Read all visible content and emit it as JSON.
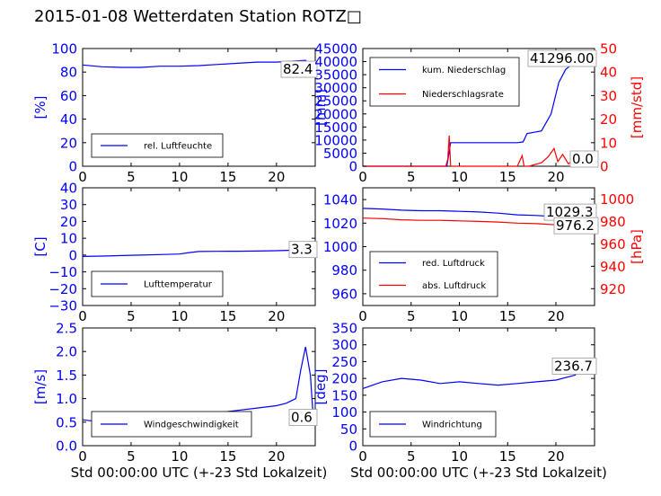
{
  "title": "2015-01-08 Wetterdaten Station ROTZ□",
  "colors": {
    "blue": "#0000ff",
    "red": "#ff0000",
    "axis": "#000000"
  },
  "xlabel": "Std 00:00:00 UTC (+-23 Std Lokalzeit)",
  "chart_data": [
    {
      "type": "line",
      "panel": "humidity",
      "xlim": [
        0,
        24
      ],
      "ylim": [
        0,
        100
      ],
      "xticks": [
        "0",
        "5",
        "10",
        "15",
        "20"
      ],
      "yticks": [
        "0",
        "20",
        "40",
        "60",
        "80",
        "100"
      ],
      "ylabel": "[%]",
      "xlabel": "",
      "legend_position": "lower-left",
      "value_box": "82.4",
      "series": [
        {
          "name": "rel. Luftfeuchte",
          "color": "#0000ff",
          "axis": "left",
          "x": [
            0,
            2,
            4,
            6,
            8,
            10,
            12,
            14,
            16,
            18,
            20,
            22,
            23,
            23.8
          ],
          "y": [
            86,
            84.5,
            84,
            84,
            85,
            85,
            85.5,
            86.5,
            87.5,
            88.5,
            88.5,
            89.5,
            90,
            82.4
          ]
        }
      ]
    },
    {
      "type": "line",
      "panel": "precipitation",
      "xlim": [
        0,
        24
      ],
      "ylim": [
        0,
        45000
      ],
      "ylim_right": [
        0,
        50
      ],
      "xticks": [
        "0",
        "5",
        "10",
        "15",
        "20"
      ],
      "yticks": [
        "0",
        "5000",
        "10000",
        "15000",
        "20000",
        "25000",
        "30000",
        "35000",
        "40000",
        "45000"
      ],
      "yticks_right": [
        "0",
        "10",
        "20",
        "30",
        "40",
        "50"
      ],
      "ylabel": "[mm]",
      "ylabel_right": "[mm/std]",
      "xlabel": "",
      "legend_position": "upper-left",
      "value_box": "41296.00",
      "value_box_right": "0.0",
      "series": [
        {
          "name": "kum. Niederschlag",
          "color": "#0000ff",
          "axis": "left",
          "x": [
            0,
            8.7,
            8.9,
            9.1,
            16,
            16.6,
            17,
            18.5,
            19.5,
            20.3,
            21,
            22,
            23.8
          ],
          "y": [
            0,
            0,
            4500,
            9000,
            9000,
            9300,
            12500,
            13500,
            20000,
            32000,
            37000,
            40000,
            41296
          ]
        },
        {
          "name": "Niederschlagsrate",
          "color": "#ff0000",
          "axis": "right",
          "x": [
            0,
            8.6,
            8.8,
            8.95,
            9.1,
            16,
            16.5,
            16.7,
            17.2,
            18.5,
            19.2,
            19.8,
            20.2,
            20.7,
            21.3,
            22,
            22.7,
            23.8
          ],
          "y": [
            0,
            0,
            3,
            13,
            0,
            0,
            4.5,
            0,
            0,
            1.5,
            4,
            7.5,
            2,
            5,
            1,
            3.5,
            2,
            0
          ]
        }
      ]
    },
    {
      "type": "line",
      "panel": "temperature",
      "xlim": [
        0,
        24
      ],
      "ylim": [
        -30,
        40
      ],
      "xticks": [
        "0",
        "5",
        "10",
        "15",
        "20"
      ],
      "yticks": [
        "−30",
        "−20",
        "−10",
        "0",
        "10",
        "20",
        "30",
        "40"
      ],
      "ylabel": "[C]",
      "xlabel": "",
      "legend_position": "lower-left",
      "value_box": "3.3",
      "series": [
        {
          "name": "Lufttemperatur",
          "color": "#0000ff",
          "axis": "left",
          "x": [
            0,
            2,
            4,
            6,
            8,
            10,
            11,
            12,
            14,
            16,
            18,
            20,
            22,
            23.8
          ],
          "y": [
            -0.8,
            -0.6,
            -0.3,
            0,
            0.3,
            0.6,
            1.5,
            2.1,
            2.2,
            2.3,
            2.4,
            2.6,
            2.9,
            3.3
          ]
        }
      ]
    },
    {
      "type": "line",
      "panel": "pressure",
      "xlim": [
        0,
        24
      ],
      "ylim": [
        950,
        1050
      ],
      "ylim_right": [
        905,
        1010
      ],
      "xticks": [
        "0",
        "5",
        "10",
        "15",
        "20"
      ],
      "yticks": [
        "960",
        "980",
        "1000",
        "1020",
        "1040"
      ],
      "yticks_right": [
        "920",
        "940",
        "960",
        "980",
        "1000"
      ],
      "ylabel": "",
      "ylabel_right": "[hPa]",
      "xlabel": "",
      "legend_position": "lower-left",
      "value_box": "1029.3",
      "value_box_right": "976.2",
      "series": [
        {
          "name": "red. Luftdruck",
          "color": "#0000ff",
          "axis": "left",
          "x": [
            0,
            2,
            4,
            6,
            8,
            10,
            12,
            14,
            16,
            18,
            20,
            22,
            23.8
          ],
          "y": [
            1032.5,
            1032,
            1031,
            1030.5,
            1030.5,
            1030,
            1029.5,
            1028.5,
            1027,
            1026.5,
            1025.5,
            1024,
            1029.3
          ]
        },
        {
          "name": "abs. Luftdruck",
          "color": "#ff0000",
          "axis": "right",
          "x": [
            0,
            2,
            4,
            6,
            8,
            10,
            12,
            14,
            16,
            18,
            20,
            21.5,
            22.5,
            23.8
          ],
          "y": [
            983,
            982.5,
            981.5,
            981,
            981,
            980.5,
            980,
            979.5,
            978.5,
            978,
            977,
            976,
            976.5,
            976.2
          ]
        }
      ]
    },
    {
      "type": "line",
      "panel": "wind-speed",
      "xlim": [
        0,
        24
      ],
      "ylim": [
        0,
        2.5
      ],
      "xticks": [
        "0",
        "5",
        "10",
        "15",
        "20"
      ],
      "yticks": [
        "0.0",
        "0.5",
        "1.0",
        "1.5",
        "2.0",
        "2.5"
      ],
      "ylabel": "[m/s]",
      "xlabel": "Std 00:00:00 UTC (+-23 Std Lokalzeit)",
      "legend_position": "lower-left",
      "value_box": "0.6",
      "series": [
        {
          "name": "Windgeschwindigkeit",
          "color": "#0000ff",
          "axis": "left",
          "x": [
            0,
            2,
            4,
            6,
            8,
            10,
            12,
            14,
            16,
            18,
            20,
            21,
            22,
            22.5,
            23,
            23.5,
            23.8
          ],
          "y": [
            0.55,
            0.5,
            0.5,
            0.55,
            0.6,
            0.6,
            0.65,
            0.7,
            0.75,
            0.8,
            0.85,
            0.9,
            1.0,
            1.6,
            2.1,
            1.5,
            0.6
          ]
        }
      ]
    },
    {
      "type": "line",
      "panel": "wind-direction",
      "xlim": [
        0,
        24
      ],
      "ylim": [
        0,
        350
      ],
      "xticks": [
        "0",
        "5",
        "10",
        "15",
        "20"
      ],
      "yticks": [
        "0",
        "50",
        "100",
        "150",
        "200",
        "250",
        "300",
        "350"
      ],
      "ylabel": "[deg]",
      "xlabel": "Std 00:00:00 UTC (+-23 Std Lokalzeit)",
      "legend_position": "lower-left",
      "value_box": "236.7",
      "series": [
        {
          "name": "Windrichtung",
          "color": "#0000ff",
          "axis": "left",
          "x": [
            0,
            2,
            4,
            6,
            8,
            10,
            12,
            14,
            16,
            18,
            20,
            22,
            23,
            23.8
          ],
          "y": [
            170,
            190,
            200,
            195,
            185,
            190,
            185,
            180,
            185,
            190,
            195,
            210,
            260,
            236.7
          ]
        }
      ]
    }
  ]
}
